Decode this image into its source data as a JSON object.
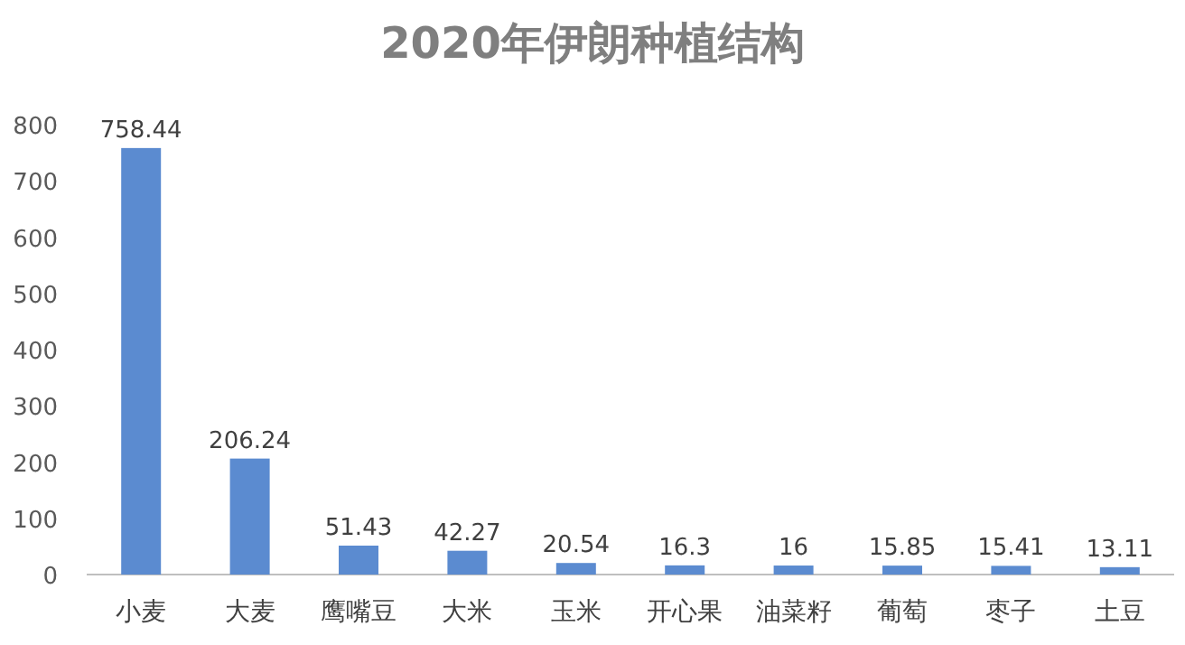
{
  "chart_data": {
    "type": "bar",
    "title": "2020年伊朗种植结构",
    "categories": [
      "小麦",
      "大麦",
      "鹰嘴豆",
      "大米",
      "玉米",
      "开心果",
      "油菜籽",
      "葡萄",
      "枣子",
      "土豆"
    ],
    "values": [
      758.44,
      206.24,
      51.43,
      42.27,
      20.54,
      16.3,
      16,
      15.85,
      15.41,
      13.11
    ],
    "color": "#5b8bd0",
    "ylim": [
      0,
      800
    ],
    "yticks": [
      0,
      100,
      200,
      300,
      400,
      500,
      600,
      700,
      800
    ],
    "grid": false,
    "data_labels": true
  }
}
